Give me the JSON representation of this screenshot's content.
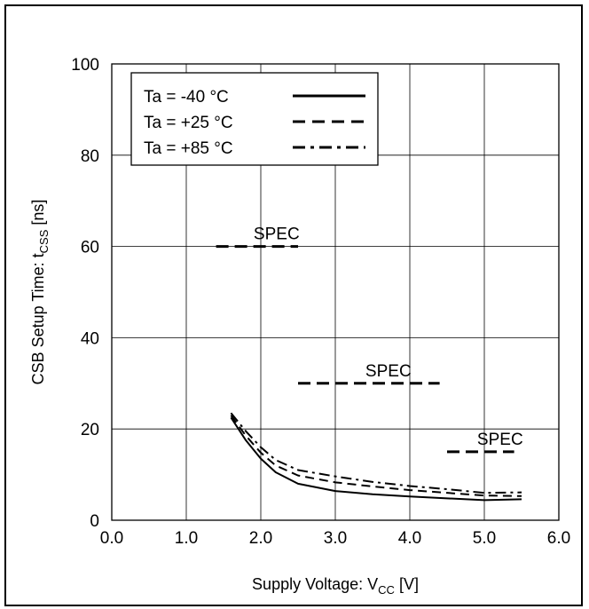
{
  "chart_data": {
    "type": "line",
    "xlabel": {
      "main": "Supply Voltage: V",
      "sub": "CC",
      "unit": " [V]"
    },
    "ylabel": {
      "main": "CSB Setup Time: t",
      "sub": "CSS",
      "unit": " [ns]"
    },
    "xlim": [
      0.0,
      6.0
    ],
    "ylim": [
      0,
      100
    ],
    "x_ticks": [
      "0.0",
      "1.0",
      "2.0",
      "3.0",
      "4.0",
      "5.0",
      "6.0"
    ],
    "y_ticks": [
      "0",
      "20",
      "40",
      "60",
      "80",
      "100"
    ],
    "x_tick_values": [
      0,
      1,
      2,
      3,
      4,
      5,
      6
    ],
    "y_tick_values": [
      0,
      20,
      40,
      60,
      80,
      100
    ],
    "grid": true,
    "legend_position": "top-left",
    "series": [
      {
        "name": "Ta = -40 °C",
        "style": "solid",
        "x": [
          1.6,
          1.8,
          2.0,
          2.2,
          2.5,
          3.0,
          3.5,
          4.0,
          4.5,
          5.0,
          5.5
        ],
        "y": [
          22.5,
          17.5,
          13.5,
          10.5,
          8.0,
          6.4,
          5.7,
          5.2,
          4.8,
          4.4,
          4.6
        ]
      },
      {
        "name": "Ta = +25 °C",
        "style": "dashed",
        "x": [
          1.6,
          1.8,
          2.0,
          2.2,
          2.5,
          3.0,
          3.5,
          4.0,
          4.5,
          5.0,
          5.5
        ],
        "y": [
          23.0,
          18.5,
          14.8,
          12.0,
          9.8,
          8.3,
          7.4,
          6.6,
          6.0,
          5.4,
          5.3
        ]
      },
      {
        "name": "Ta = +85 °C",
        "style": "dashdot",
        "x": [
          1.6,
          1.8,
          2.0,
          2.2,
          2.5,
          3.0,
          3.5,
          4.0,
          4.5,
          5.0,
          5.5
        ],
        "y": [
          23.5,
          19.5,
          16.0,
          13.2,
          11.0,
          9.6,
          8.4,
          7.5,
          6.8,
          6.0,
          6.1
        ]
      }
    ],
    "spec_lines": [
      {
        "label": "SPEC",
        "x_start": 1.4,
        "x_end": 2.5,
        "y": 60
      },
      {
        "label": "SPEC",
        "x_start": 2.5,
        "x_end": 4.4,
        "y": 30
      },
      {
        "label": "SPEC",
        "x_start": 4.5,
        "x_end": 5.4,
        "y": 15
      }
    ]
  }
}
